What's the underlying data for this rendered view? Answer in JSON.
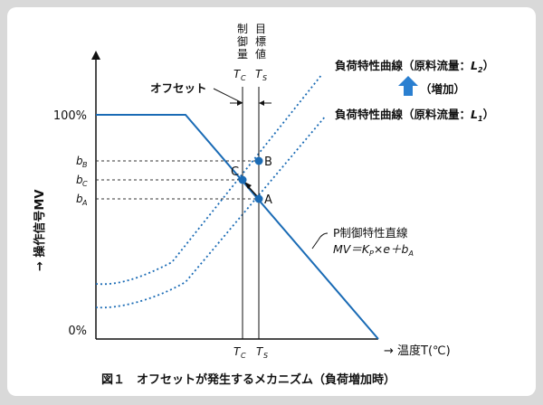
{
  "caption": "図１　オフセットが発生するメカニズム（負荷増加時）",
  "colors": {
    "line": "#1a6bb5",
    "arrow_up": "#2a7fd0",
    "text": "#111111"
  },
  "axes": {
    "ylabel": "→ 操作信号MV",
    "xlabel": "→ 温度T(℃)",
    "y_tick_top": "100%",
    "y_tick_bottom": "0%"
  },
  "ticks": {
    "bB": "bB",
    "bC": "bC",
    "bA": "bA",
    "x_tc": "TC",
    "x_ts": "TS"
  },
  "top_labels": {
    "control_amount": [
      "制",
      "御",
      "量"
    ],
    "target_value": [
      "目",
      "標",
      "値"
    ],
    "tc": "TC",
    "ts": "TS"
  },
  "annotations": {
    "offset": "オフセット",
    "load_l2": "負荷特性曲線（原料流量：L2）",
    "increase": "（増加）",
    "load_l1": "負荷特性曲線（原料流量：L1）",
    "p_line_title": "P制御特性直線",
    "p_line_formula": "MV＝KP×e＋bA",
    "point_a": "A",
    "point_b": "B",
    "point_c": "C"
  },
  "chart_data": {
    "type": "line",
    "series": [
      {
        "name": "P制御特性直線",
        "style": "solid"
      },
      {
        "name": "負荷特性曲線（原料流量：L1）",
        "style": "dotted"
      },
      {
        "name": "負荷特性曲線（原料流量：L2）",
        "style": "dotted"
      }
    ],
    "points": [
      "A",
      "B",
      "C"
    ]
  }
}
